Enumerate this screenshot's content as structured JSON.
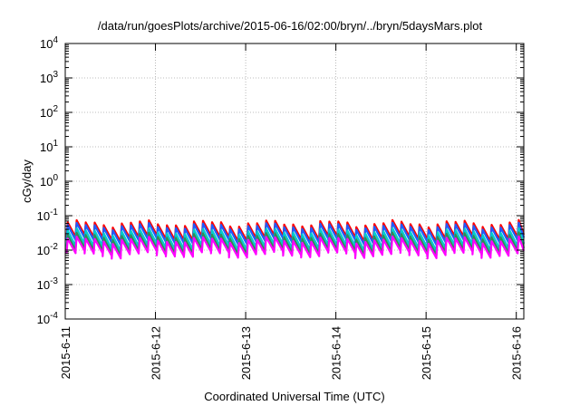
{
  "chart_data": {
    "type": "line",
    "title": "/data/run/goesPlots/archive/2015-06-16/02:00/bryn/../bryn/5daysMars.plot",
    "xlabel": "Coordinated Universal Time (UTC)",
    "ylabel": "cGy/day",
    "yscale": "log",
    "ylim": [
      0.0001,
      10000
    ],
    "yticks": [
      {
        "base": "10",
        "exp": "-4"
      },
      {
        "base": "10",
        "exp": "-3"
      },
      {
        "base": "10",
        "exp": "-2"
      },
      {
        "base": "10",
        "exp": "-1"
      },
      {
        "base": "10",
        "exp": "0"
      },
      {
        "base": "10",
        "exp": "1"
      },
      {
        "base": "10",
        "exp": "2"
      },
      {
        "base": "10",
        "exp": "3"
      },
      {
        "base": "10",
        "exp": "4"
      }
    ],
    "xlim": [
      "2015-06-11 00:00",
      "2015-06-16 02:00"
    ],
    "xticks": [
      "2015-6-11",
      "2015-6-12",
      "2015-6-13",
      "2015-6-14",
      "2015-6-15",
      "2015-6-16"
    ],
    "grid": true,
    "pattern": "sawtooth",
    "cycles_per_day": 10,
    "series": [
      {
        "color": "#ff0000",
        "peak": 0.06,
        "trough": 0.022
      },
      {
        "color": "#1e5cff",
        "peak": 0.05,
        "trough": 0.018
      },
      {
        "color": "#00cccc",
        "peak": 0.035,
        "trough": 0.012
      },
      {
        "color": "#2e8b57",
        "peak": 0.026,
        "trough": 0.009
      },
      {
        "color": "#ff00ff",
        "peak": 0.02,
        "trough": 0.0075
      }
    ]
  }
}
